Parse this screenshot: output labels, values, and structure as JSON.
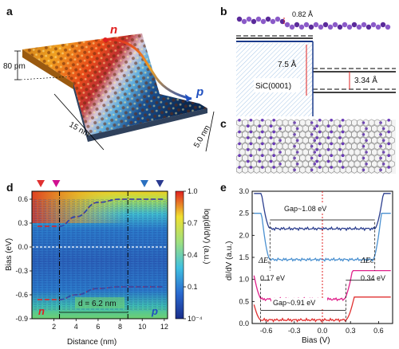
{
  "panels": {
    "a": {
      "label": "a",
      "height_label": "80 pm",
      "length_label": "15 nm",
      "width_label": "5.0 nm",
      "n_label": "n",
      "p_label": "p"
    },
    "b": {
      "label": "b",
      "step_height": "0.82 Å",
      "spacing_large": "7.5 Å",
      "spacing_small": "3.34 Å",
      "substrate": "SiC(0001)"
    },
    "c": {
      "label": "c"
    },
    "d": {
      "label": "d",
      "n_label": "n",
      "p_label": "p",
      "d_label": "d = 6.2 nm",
      "colorbar_label": "log(dI/dV) (a.u.)",
      "colorbar_ticks": [
        "1.0",
        "0.7",
        "0.4",
        "0.1",
        "10⁻⁴"
      ]
    },
    "e": {
      "label": "e",
      "gap_top": "Gap~1.08 eV",
      "gap_bottom": "Gap~0.91 eV",
      "dEv_label": "ΔEᵥ",
      "dEc_label": "ΔEᴄ",
      "dEv_value": "0.17 eV",
      "dEc_value": "0.34 eV"
    }
  },
  "chart_data": [
    {
      "type": "heatmap",
      "panel": "d",
      "xlabel": "Distance (nm)",
      "ylabel": "Bias (eV)",
      "xlim": [
        0,
        12.3
      ],
      "ylim": [
        -0.9,
        0.7
      ],
      "xticks": [
        2,
        4,
        6,
        8,
        10,
        12
      ],
      "yticks": [
        0.6,
        0.3,
        0.0,
        -0.3,
        -0.6,
        -0.9
      ],
      "colorbar_range": [
        "10⁻⁴",
        "1.0"
      ],
      "markers": [
        {
          "x": 0.8,
          "color": "#e03030"
        },
        {
          "x": 2.2,
          "color": "#d01090"
        },
        {
          "x": 10.2,
          "color": "#2a70c0"
        },
        {
          "x": 11.6,
          "color": "#2a3a90"
        }
      ],
      "boundary_lines_x": [
        2.5,
        8.7
      ],
      "cb_edge_n": {
        "x": [
          0.5,
          2.5,
          4.0,
          6.0,
          8.0,
          12.0
        ],
        "y": [
          0.26,
          0.26,
          0.38,
          0.56,
          0.6,
          0.6
        ]
      },
      "vb_edge_n": {
        "x": [
          0.5,
          2.5,
          4.0,
          6.0,
          8.0,
          12.0
        ],
        "y": [
          -0.66,
          -0.66,
          -0.6,
          -0.52,
          -0.5,
          -0.5
        ]
      },
      "fermi_level": 0.0
    },
    {
      "type": "line",
      "panel": "e",
      "xlabel": "Bias (V)",
      "ylabel": "dI/dV (a.u.)",
      "xlim": [
        -0.75,
        0.75
      ],
      "ylim": [
        0.0,
        3.0
      ],
      "xticks": [
        -0.6,
        -0.3,
        0.0,
        0.3,
        0.6
      ],
      "yticks": [
        0.0,
        0.5,
        1.0,
        1.5,
        2.0,
        2.5,
        3.0
      ],
      "series": [
        {
          "color": "#2c3f8f",
          "baseline": 2.15,
          "edges": [
            -0.56,
            0.56
          ],
          "top": 2.95
        },
        {
          "color": "#4a90d0",
          "baseline": 1.45,
          "edges": [
            -0.56,
            0.54
          ],
          "top": 2.5
        },
        {
          "color": "#e0208a",
          "baseline": 0.55,
          "edges": [
            -0.65,
            0.23
          ],
          "top": 1.2
        },
        {
          "color": "#e03030",
          "baseline": 0.08,
          "edges": [
            -0.66,
            0.25
          ],
          "top": 0.6
        }
      ]
    }
  ]
}
